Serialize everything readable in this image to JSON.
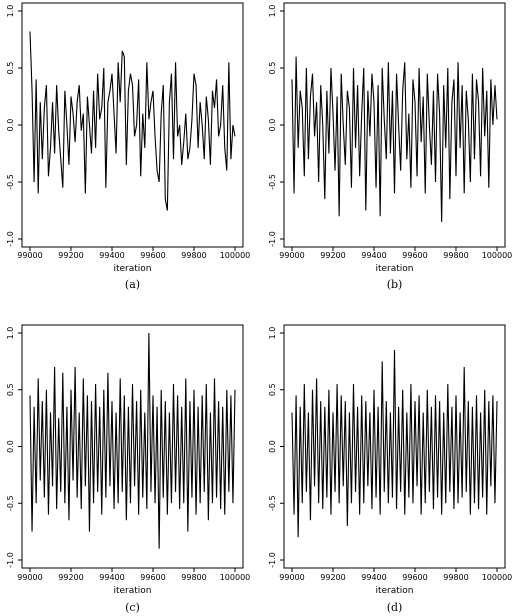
{
  "chart_data": [
    {
      "panel_label": "(a)",
      "type": "line",
      "title": "",
      "xlabel": "iteration",
      "ylabel": "",
      "xlim": [
        99000,
        100000
      ],
      "ylim": [
        -1.0,
        1.0
      ],
      "xticks": [
        99000,
        99200,
        99400,
        99600,
        99800,
        100000
      ],
      "yticks": [
        -1.0,
        -0.5,
        0.0,
        0.5,
        1.0
      ],
      "x_tick_labels": [
        "99000",
        "99200",
        "99400",
        "99600",
        "99800",
        "100000"
      ],
      "y_tick_labels": [
        "-1.0",
        "-0.5",
        "0.0",
        "0.5",
        "1.0"
      ],
      "grid": false,
      "series": [
        {
          "x": [
            99000,
            99010,
            99020,
            99030,
            99040,
            99050,
            99060,
            99070,
            99080,
            99090,
            99100,
            99110,
            99120,
            99130,
            99140,
            99150,
            99160,
            99170,
            99180,
            99190,
            99200,
            99210,
            99220,
            99230,
            99240,
            99250,
            99260,
            99270,
            99280,
            99290,
            99300,
            99310,
            99320,
            99330,
            99340,
            99350,
            99360,
            99370,
            99380,
            99390,
            99400,
            99410,
            99420,
            99430,
            99440,
            99450,
            99460,
            99470,
            99480,
            99490,
            99500,
            99510,
            99520,
            99530,
            99540,
            99550,
            99560,
            99570,
            99580,
            99590,
            99600,
            99610,
            99620,
            99630,
            99640,
            99650,
            99660,
            99670,
            99680,
            99690,
            99700,
            99710,
            99720,
            99730,
            99740,
            99750,
            99760,
            99770,
            99780,
            99790,
            99800,
            99810,
            99820,
            99830,
            99840,
            99850,
            99860,
            99870,
            99880,
            99890,
            99900,
            99910,
            99920,
            99930,
            99940,
            99950,
            99960,
            99970,
            99980,
            99990,
            100000
          ],
          "values": [
            0.82,
            0.3,
            -0.5,
            0.4,
            -0.6,
            0.2,
            -0.3,
            0.15,
            0.35,
            -0.45,
            -0.2,
            0.2,
            -0.25,
            0.35,
            -0.05,
            -0.3,
            -0.55,
            0.3,
            0.0,
            -0.35,
            0.25,
            0.1,
            -0.15,
            0.2,
            0.35,
            -0.05,
            0.1,
            -0.6,
            0.25,
            0.0,
            -0.25,
            0.3,
            -0.2,
            0.45,
            0.05,
            0.15,
            0.5,
            -0.55,
            0.2,
            0.3,
            0.45,
            0.1,
            -0.25,
            0.55,
            0.2,
            0.65,
            0.6,
            -0.35,
            0.3,
            0.45,
            0.35,
            -0.1,
            0.0,
            0.4,
            -0.45,
            0.1,
            -0.2,
            0.55,
            0.05,
            0.2,
            0.3,
            -0.1,
            -0.4,
            -0.5,
            0.1,
            0.35,
            -0.65,
            -0.75,
            0.2,
            0.45,
            -0.3,
            0.55,
            -0.1,
            0.0,
            -0.35,
            -0.15,
            0.1,
            -0.3,
            -0.2,
            0.05,
            0.45,
            0.35,
            -0.2,
            0.2,
            0.0,
            -0.3,
            0.25,
            0.05,
            -0.35,
            0.3,
            0.15,
            0.4,
            -0.1,
            0.0,
            0.35,
            -0.2,
            -0.4,
            0.55,
            -0.3,
            0.0,
            -0.1
          ]
        }
      ]
    },
    {
      "panel_label": "(b)",
      "type": "line",
      "title": "",
      "xlabel": "iteration",
      "ylabel": "",
      "xlim": [
        99000,
        100000
      ],
      "ylim": [
        -1.0,
        1.0
      ],
      "xticks": [
        99000,
        99200,
        99400,
        99600,
        99800,
        100000
      ],
      "yticks": [
        -1.0,
        -0.5,
        0.0,
        0.5,
        1.0
      ],
      "x_tick_labels": [
        "99000",
        "99200",
        "99400",
        "99600",
        "99800",
        "100000"
      ],
      "y_tick_labels": [
        "-1.0",
        "-0.5",
        "0.0",
        "0.5",
        "1.0"
      ],
      "grid": false,
      "series": [
        {
          "x": [
            99000,
            99010,
            99020,
            99030,
            99040,
            99050,
            99060,
            99070,
            99080,
            99090,
            99100,
            99110,
            99120,
            99130,
            99140,
            99150,
            99160,
            99170,
            99180,
            99190,
            99200,
            99210,
            99220,
            99230,
            99240,
            99250,
            99260,
            99270,
            99280,
            99290,
            99300,
            99310,
            99320,
            99330,
            99340,
            99350,
            99360,
            99370,
            99380,
            99390,
            99400,
            99410,
            99420,
            99430,
            99440,
            99450,
            99460,
            99470,
            99480,
            99490,
            99500,
            99510,
            99520,
            99530,
            99540,
            99550,
            99560,
            99570,
            99580,
            99590,
            99600,
            99610,
            99620,
            99630,
            99640,
            99650,
            99660,
            99670,
            99680,
            99690,
            99700,
            99710,
            99720,
            99730,
            99740,
            99750,
            99760,
            99770,
            99780,
            99790,
            99800,
            99810,
            99820,
            99830,
            99840,
            99850,
            99860,
            99870,
            99880,
            99890,
            99900,
            99910,
            99920,
            99930,
            99940,
            99950,
            99960,
            99970,
            99980,
            99990,
            100000
          ],
          "values": [
            0.4,
            -0.6,
            0.6,
            -0.2,
            0.3,
            0.15,
            -0.45,
            0.5,
            -0.3,
            0.25,
            0.45,
            -0.1,
            0.2,
            -0.5,
            0.35,
            0.0,
            -0.65,
            0.3,
            -0.25,
            0.5,
            0.1,
            -0.4,
            0.25,
            -0.8,
            0.45,
            0.0,
            -0.35,
            0.3,
            0.15,
            -0.55,
            0.5,
            -0.2,
            0.35,
            -0.45,
            0.1,
            0.5,
            -0.75,
            0.3,
            -0.1,
            0.45,
            0.2,
            -0.55,
            0.35,
            -0.8,
            0.5,
            0.05,
            -0.3,
            0.55,
            -0.25,
            0.3,
            -0.6,
            0.45,
            0.0,
            -0.4,
            0.3,
            0.55,
            -0.3,
            0.1,
            -0.55,
            0.4,
            0.2,
            -0.45,
            0.5,
            -0.15,
            0.25,
            -0.6,
            0.45,
            0.0,
            -0.35,
            0.3,
            -0.5,
            0.45,
            0.1,
            -0.85,
            0.35,
            -0.2,
            0.5,
            -0.65,
            0.2,
            0.4,
            -0.45,
            0.55,
            -0.2,
            0.35,
            -0.6,
            0.3,
            0.05,
            -0.5,
            0.45,
            -0.3,
            0.4,
            0.2,
            -0.45,
            0.5,
            -0.1,
            0.3,
            -0.55,
            0.4,
            0.0,
            0.35,
            0.05
          ]
        }
      ]
    },
    {
      "panel_label": "(c)",
      "type": "line",
      "title": "",
      "xlabel": "iteration",
      "ylabel": "",
      "xlim": [
        99000,
        100000
      ],
      "ylim": [
        -1.0,
        1.0
      ],
      "xticks": [
        99000,
        99200,
        99400,
        99600,
        99800,
        100000
      ],
      "yticks": [
        -1.0,
        -0.5,
        0.0,
        0.5,
        1.0
      ],
      "x_tick_labels": [
        "99000",
        "99200",
        "99400",
        "99600",
        "99800",
        "100000"
      ],
      "y_tick_labels": [
        "-1.0",
        "-0.5",
        "0.0",
        "0.5",
        "1.0"
      ],
      "grid": false,
      "series": [
        {
          "x": [
            99000,
            99010,
            99020,
            99030,
            99040,
            99050,
            99060,
            99070,
            99080,
            99090,
            99100,
            99110,
            99120,
            99130,
            99140,
            99150,
            99160,
            99170,
            99180,
            99190,
            99200,
            99210,
            99220,
            99230,
            99240,
            99250,
            99260,
            99270,
            99280,
            99290,
            99300,
            99310,
            99320,
            99330,
            99340,
            99350,
            99360,
            99370,
            99380,
            99390,
            99400,
            99410,
            99420,
            99430,
            99440,
            99450,
            99460,
            99470,
            99480,
            99490,
            99500,
            99510,
            99520,
            99530,
            99540,
            99550,
            99560,
            99570,
            99580,
            99590,
            99600,
            99610,
            99620,
            99630,
            99640,
            99650,
            99660,
            99670,
            99680,
            99690,
            99700,
            99710,
            99720,
            99730,
            99740,
            99750,
            99760,
            99770,
            99780,
            99790,
            99800,
            99810,
            99820,
            99830,
            99840,
            99850,
            99860,
            99870,
            99880,
            99890,
            99900,
            99910,
            99920,
            99930,
            99940,
            99950,
            99960,
            99970,
            99980,
            99990,
            100000
          ],
          "values": [
            0.45,
            -0.75,
            0.35,
            -0.5,
            0.6,
            -0.3,
            0.4,
            -0.45,
            0.5,
            -0.6,
            0.3,
            -0.35,
            0.7,
            -0.55,
            0.25,
            -0.4,
            0.65,
            -0.5,
            0.35,
            -0.65,
            0.5,
            -0.3,
            0.7,
            -0.45,
            0.3,
            -0.55,
            0.6,
            -0.35,
            0.45,
            -0.75,
            0.4,
            -0.5,
            0.55,
            -0.4,
            0.35,
            -0.6,
            0.5,
            -0.45,
            0.65,
            -0.35,
            0.4,
            -0.55,
            0.3,
            -0.5,
            0.6,
            -0.4,
            0.45,
            -0.65,
            0.35,
            -0.5,
            0.55,
            -0.35,
            0.4,
            -0.6,
            0.5,
            -0.45,
            0.3,
            -0.55,
            1.0,
            -0.4,
            0.45,
            -0.5,
            0.35,
            -0.9,
            0.5,
            -0.45,
            0.4,
            -0.6,
            0.3,
            -0.5,
            0.55,
            -0.4,
            0.45,
            -0.55,
            0.35,
            -0.5,
            0.6,
            -0.75,
            0.4,
            -0.45,
            0.5,
            -0.6,
            0.35,
            -0.5,
            0.45,
            -0.4,
            0.55,
            -0.65,
            0.3,
            -0.5,
            0.6,
            -0.45,
            0.4,
            -0.55,
            0.35,
            -0.6,
            0.5,
            -0.4,
            0.45,
            -0.5,
            0.5
          ]
        }
      ]
    },
    {
      "panel_label": "(d)",
      "type": "line",
      "title": "",
      "xlabel": "iteration",
      "ylabel": "",
      "xlim": [
        99000,
        100000
      ],
      "ylim": [
        -1.0,
        1.0
      ],
      "xticks": [
        99000,
        99200,
        99400,
        99600,
        99800,
        100000
      ],
      "yticks": [
        -1.0,
        -0.5,
        0.0,
        0.5,
        1.0
      ],
      "x_tick_labels": [
        "99000",
        "99200",
        "99400",
        "99600",
        "99800",
        "100000"
      ],
      "y_tick_labels": [
        "-1.0",
        "-0.5",
        "0.0",
        "0.5",
        "1.0"
      ],
      "grid": false,
      "series": [
        {
          "x": [
            99000,
            99010,
            99020,
            99030,
            99040,
            99050,
            99060,
            99070,
            99080,
            99090,
            99100,
            99110,
            99120,
            99130,
            99140,
            99150,
            99160,
            99170,
            99180,
            99190,
            99200,
            99210,
            99220,
            99230,
            99240,
            99250,
            99260,
            99270,
            99280,
            99290,
            99300,
            99310,
            99320,
            99330,
            99340,
            99350,
            99360,
            99370,
            99380,
            99390,
            99400,
            99410,
            99420,
            99430,
            99440,
            99450,
            99460,
            99470,
            99480,
            99490,
            99500,
            99510,
            99520,
            99530,
            99540,
            99550,
            99560,
            99570,
            99580,
            99590,
            99600,
            99610,
            99620,
            99630,
            99640,
            99650,
            99660,
            99670,
            99680,
            99690,
            99700,
            99710,
            99720,
            99730,
            99740,
            99750,
            99760,
            99770,
            99780,
            99790,
            99800,
            99810,
            99820,
            99830,
            99840,
            99850,
            99860,
            99870,
            99880,
            99890,
            99900,
            99910,
            99920,
            99930,
            99940,
            99950,
            99960,
            99970,
            99980,
            99990,
            100000
          ],
          "values": [
            0.3,
            -0.6,
            0.45,
            -0.8,
            0.35,
            -0.5,
            0.55,
            -0.4,
            0.3,
            -0.65,
            0.5,
            -0.35,
            0.6,
            -0.5,
            0.4,
            -0.55,
            0.35,
            -0.45,
            0.5,
            -0.6,
            0.3,
            -0.4,
            0.55,
            -0.5,
            0.45,
            -0.35,
            0.4,
            -0.7,
            0.3,
            -0.5,
            0.55,
            -0.4,
            0.35,
            -0.6,
            0.45,
            -0.5,
            0.4,
            -0.35,
            0.3,
            -0.55,
            0.5,
            -0.45,
            0.35,
            -0.6,
            0.75,
            -0.4,
            0.4,
            -0.5,
            0.3,
            -0.45,
            0.85,
            -0.55,
            0.35,
            -0.4,
            0.5,
            -0.6,
            0.3,
            -0.45,
            0.55,
            -0.5,
            0.4,
            -0.35,
            0.45,
            -0.6,
            0.3,
            -0.5,
            0.5,
            -0.4,
            0.35,
            -0.55,
            0.45,
            -0.45,
            0.4,
            -0.6,
            0.3,
            -0.5,
            0.55,
            -0.4,
            0.35,
            -0.55,
            0.45,
            -0.5,
            0.3,
            -0.45,
            0.7,
            -0.4,
            0.4,
            -0.6,
            0.35,
            -0.5,
            0.45,
            -0.55,
            0.3,
            -0.45,
            0.5,
            -0.6,
            0.4,
            -0.35,
            0.45,
            -0.5,
            0.4
          ]
        }
      ]
    }
  ]
}
